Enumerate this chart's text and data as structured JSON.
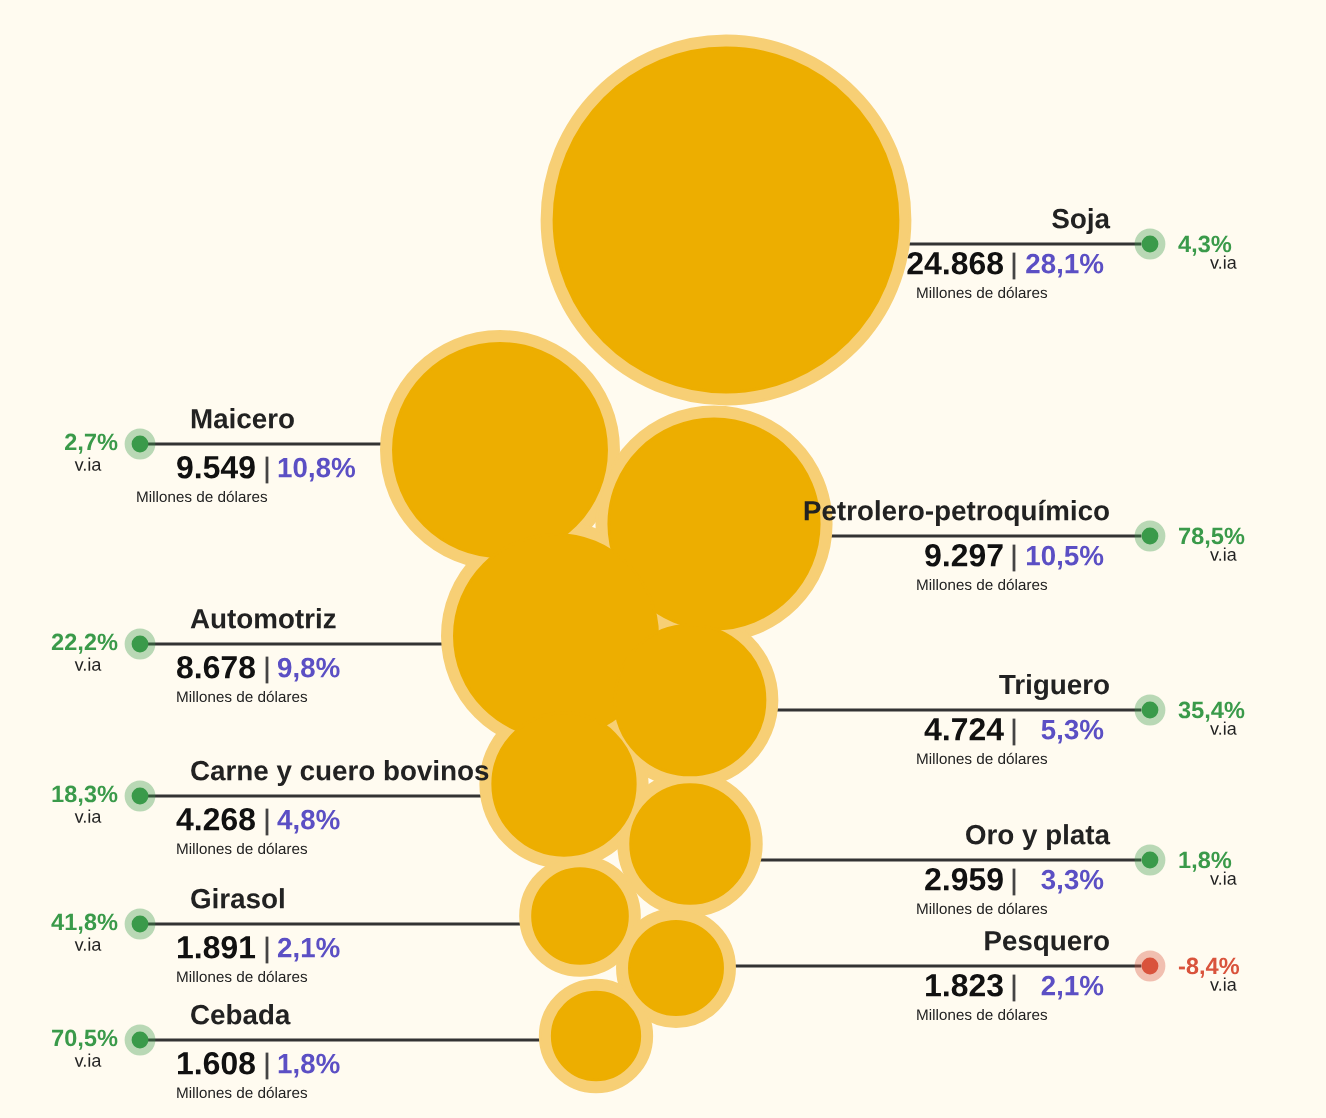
{
  "chart_data": {
    "type": "other",
    "categories": [
      "Soja",
      "Maicero",
      "Petrolero-petroquímico",
      "Automotriz",
      "Triguero",
      "Carne y cuero bovinos",
      "Oro y plata",
      "Girasol",
      "Pesquero",
      "Cebada"
    ],
    "series": [
      {
        "color": "#edae00",
        "values": [
          24868,
          9549,
          9297,
          8678,
          4724,
          4268,
          2959,
          1891,
          1823,
          1608
        ],
        "value_labels": [
          "24.868",
          "9.549",
          "9.297",
          "8.678",
          "4.724",
          "4.268",
          "2.959",
          "1.891",
          "1.823",
          "1.608"
        ]
      },
      {
        "color": "#5b4fc4",
        "values": [
          28.1,
          10.8,
          10.5,
          9.8,
          5.3,
          4.8,
          3.3,
          2.1,
          2.1,
          1.8
        ],
        "value_labels": [
          "28,1%",
          "10,8%",
          "10,5%",
          "9,8%",
          "5,3%",
          "4,8%",
          "3,3%",
          "2,1%",
          "2,1%",
          "1,8%"
        ]
      },
      {
        "colors": [
          "#3a9a4a",
          "#3a9a4a",
          "#3a9a4a",
          "#3a9a4a",
          "#3a9a4a",
          "#3a9a4a",
          "#3a9a4a",
          "#3a9a4a",
          "#d9533c",
          "#3a9a4a"
        ],
        "values": [
          4.3,
          2.7,
          78.5,
          22.2,
          35.4,
          18.3,
          1.8,
          41.8,
          -8.4,
          70.5
        ],
        "value_labels": [
          "4,3%",
          "2,7%",
          "78,5%",
          "22,2%",
          "35,4%",
          "18,3%",
          "1,8%",
          "41,8%",
          "-8,4%",
          "70,5%"
        ]
      }
    ],
    "data_labels": true,
    "annotations": [
      "Millones de dólares",
      "v.ia"
    ]
  }
}
